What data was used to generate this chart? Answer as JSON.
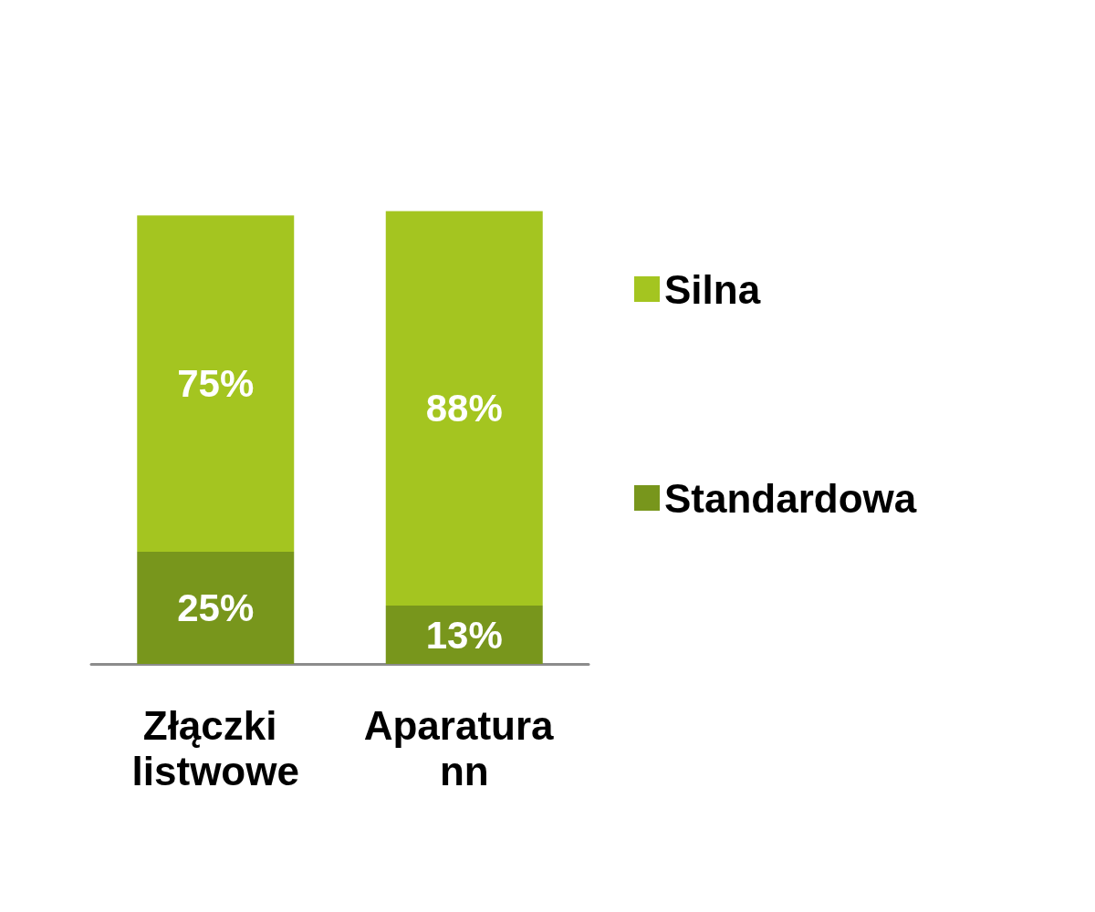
{
  "chart_data": {
    "type": "bar",
    "stacked": true,
    "legend": "right",
    "categories": [
      "Złączki listwowe",
      "Aparatura nn"
    ],
    "series": [
      {
        "name": "Standardowa",
        "color": "#78961c",
        "values": [
          25,
          13
        ],
        "value_labels": [
          "25%",
          "13%"
        ]
      },
      {
        "name": "Silna",
        "color": "#a4c520",
        "values": [
          75,
          88
        ],
        "value_labels": [
          "75%",
          "88%"
        ]
      }
    ]
  }
}
